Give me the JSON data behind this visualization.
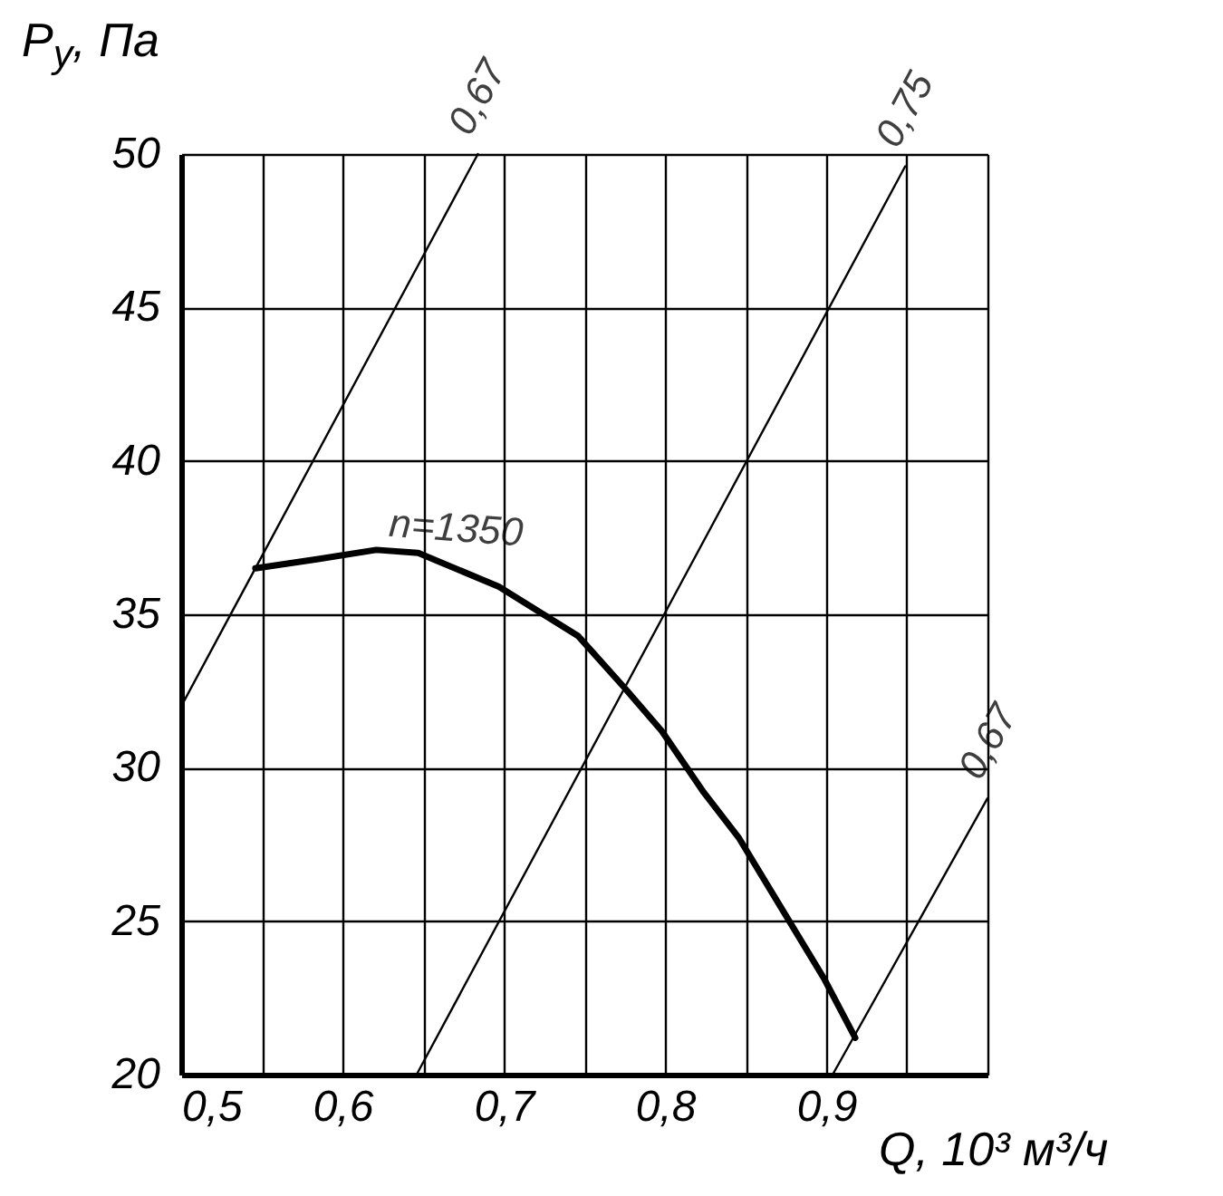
{
  "chart_data": {
    "type": "line",
    "xlabel": "Q, 10³ м³/ч",
    "ylabel": "P$_{y}$, Па",
    "xlim": [
      0.5,
      1.0
    ],
    "ylim": [
      20,
      50
    ],
    "xticks": [
      {
        "value": 0.5,
        "label": "0,5"
      },
      {
        "value": 0.55,
        "label": null
      },
      {
        "value": 0.6,
        "label": "0,6"
      },
      {
        "value": 0.65,
        "label": null
      },
      {
        "value": 0.7,
        "label": "0,7"
      },
      {
        "value": 0.75,
        "label": null
      },
      {
        "value": 0.8,
        "label": "0,8"
      },
      {
        "value": 0.85,
        "label": null
      },
      {
        "value": 0.9,
        "label": "0,9"
      },
      {
        "value": 0.95,
        "label": null
      },
      {
        "value": 1.0,
        "label": null
      }
    ],
    "yticks": [
      20,
      25,
      30,
      35,
      40,
      45,
      50
    ],
    "grid": true,
    "series": [
      {
        "name": "n=1350",
        "color": "#000000",
        "x": [
          0.546,
          0.585,
          0.621,
          0.647,
          0.697,
          0.746,
          0.775,
          0.798,
          0.824,
          0.846,
          0.899,
          0.918
        ],
        "values": [
          36.5,
          36.8,
          37.1,
          37.0,
          35.9,
          34.3,
          32.6,
          31.2,
          29.2,
          27.7,
          23.1,
          21.2
        ]
      },
      {
        "name": "0,67",
        "color": "#000000",
        "x": [
          0.5,
          0.684
        ],
        "values": [
          32,
          50
        ]
      },
      {
        "name": "0,75",
        "color": "#000000",
        "x": [
          0.646,
          0.949
        ],
        "values": [
          20,
          49.6
        ]
      },
      {
        "name": "0,67",
        "color": "#000000",
        "x": [
          0.904,
          1.0
        ],
        "values": [
          20,
          29
        ]
      }
    ]
  }
}
